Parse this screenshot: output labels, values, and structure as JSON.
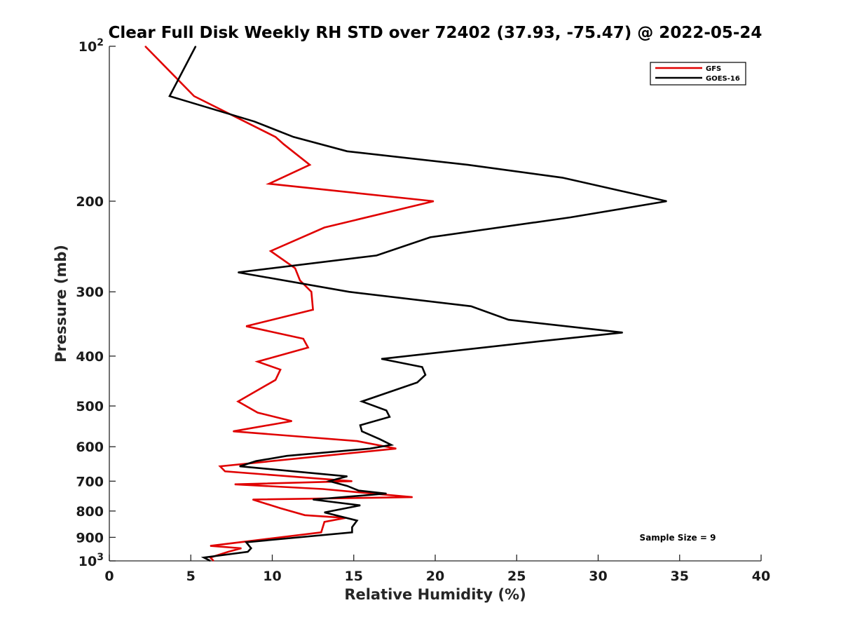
{
  "chart_data": {
    "type": "line",
    "title": "Clear Full Disk Weekly RH STD over 72402 (37.93, -75.47) @ 2022-05-24",
    "xlabel": "Relative Humidity (%)",
    "ylabel": "Pressure (mb)",
    "xlim": [
      0,
      40
    ],
    "ylim": [
      100,
      1000
    ],
    "yscale": "log",
    "y_reversed": true,
    "grid": false,
    "legend_position": "top-right",
    "x_ticks": [
      0,
      5,
      10,
      15,
      20,
      25,
      30,
      35,
      40
    ],
    "x_tick_labels": [
      "0",
      "5",
      "10",
      "15",
      "20",
      "25",
      "30",
      "35",
      "40"
    ],
    "y_ticks": [
      100,
      200,
      300,
      400,
      500,
      600,
      700,
      800,
      900,
      1000
    ],
    "y_tick_labels": [
      {
        "base": "10",
        "sup": "2"
      },
      {
        "base": "200",
        "sup": ""
      },
      {
        "base": "300",
        "sup": ""
      },
      {
        "base": "400",
        "sup": ""
      },
      {
        "base": "500",
        "sup": ""
      },
      {
        "base": "600",
        "sup": ""
      },
      {
        "base": "700",
        "sup": ""
      },
      {
        "base": "800",
        "sup": ""
      },
      {
        "base": "900",
        "sup": ""
      },
      {
        "base": "10",
        "sup": "3"
      }
    ],
    "annotation": "Sample Size = 9",
    "series": [
      {
        "name": "GFS",
        "color": "#e00000",
        "points": [
          [
            2.2,
            100
          ],
          [
            5.2,
            125
          ],
          [
            10.2,
            150
          ],
          [
            10.7,
            155
          ],
          [
            12.3,
            170
          ],
          [
            9.8,
            185
          ],
          [
            19.9,
            200
          ],
          [
            13.2,
            225
          ],
          [
            9.9,
            250
          ],
          [
            11.4,
            270
          ],
          [
            11.7,
            285
          ],
          [
            12.4,
            300
          ],
          [
            12.5,
            325
          ],
          [
            8.4,
            350
          ],
          [
            11.9,
            370
          ],
          [
            12.2,
            385
          ],
          [
            9.1,
            410
          ],
          [
            10.5,
            425
          ],
          [
            10.2,
            445
          ],
          [
            7.9,
            490
          ],
          [
            9.1,
            515
          ],
          [
            11.2,
            535
          ],
          [
            7.6,
            560
          ],
          [
            15.2,
            585
          ],
          [
            17.6,
            605
          ],
          [
            6.8,
            655
          ],
          [
            7.1,
            670
          ],
          [
            14.9,
            700
          ],
          [
            7.7,
            710
          ],
          [
            13.1,
            725
          ],
          [
            18.6,
            752
          ],
          [
            8.8,
            760
          ],
          [
            10.5,
            790
          ],
          [
            12.0,
            815
          ],
          [
            14.5,
            825
          ],
          [
            13.2,
            840
          ],
          [
            13.0,
            880
          ],
          [
            6.2,
            935
          ],
          [
            8.1,
            945
          ],
          [
            7.3,
            960
          ],
          [
            6.2,
            985
          ],
          [
            6.4,
            1000
          ]
        ]
      },
      {
        "name": "GOES-16",
        "color": "#000000",
        "points": [
          [
            5.3,
            100
          ],
          [
            3.7,
            125
          ],
          [
            8.9,
            140
          ],
          [
            11.3,
            150
          ],
          [
            14.6,
            160
          ],
          [
            22.0,
            170
          ],
          [
            27.8,
            180
          ],
          [
            34.2,
            200
          ],
          [
            28.3,
            215
          ],
          [
            19.7,
            235
          ],
          [
            16.4,
            255
          ],
          [
            7.9,
            275
          ],
          [
            14.7,
            300
          ],
          [
            22.2,
            320
          ],
          [
            24.5,
            340
          ],
          [
            31.5,
            360
          ],
          [
            26.2,
            375
          ],
          [
            16.7,
            405
          ],
          [
            19.2,
            420
          ],
          [
            19.4,
            435
          ],
          [
            18.9,
            450
          ],
          [
            15.5,
            490
          ],
          [
            17.0,
            510
          ],
          [
            17.2,
            525
          ],
          [
            15.4,
            545
          ],
          [
            15.5,
            560
          ],
          [
            16.6,
            580
          ],
          [
            17.3,
            595
          ],
          [
            16.0,
            605
          ],
          [
            10.9,
            625
          ],
          [
            9.0,
            640
          ],
          [
            8.0,
            655
          ],
          [
            14.6,
            685
          ],
          [
            13.5,
            700
          ],
          [
            14.6,
            715
          ],
          [
            15.3,
            730
          ],
          [
            17.0,
            740
          ],
          [
            12.5,
            760
          ],
          [
            15.4,
            780
          ],
          [
            13.2,
            805
          ],
          [
            15.2,
            835
          ],
          [
            14.9,
            860
          ],
          [
            14.9,
            880
          ],
          [
            8.4,
            920
          ],
          [
            8.7,
            945
          ],
          [
            8.5,
            960
          ],
          [
            5.8,
            985
          ],
          [
            6.2,
            1000
          ]
        ]
      }
    ]
  }
}
